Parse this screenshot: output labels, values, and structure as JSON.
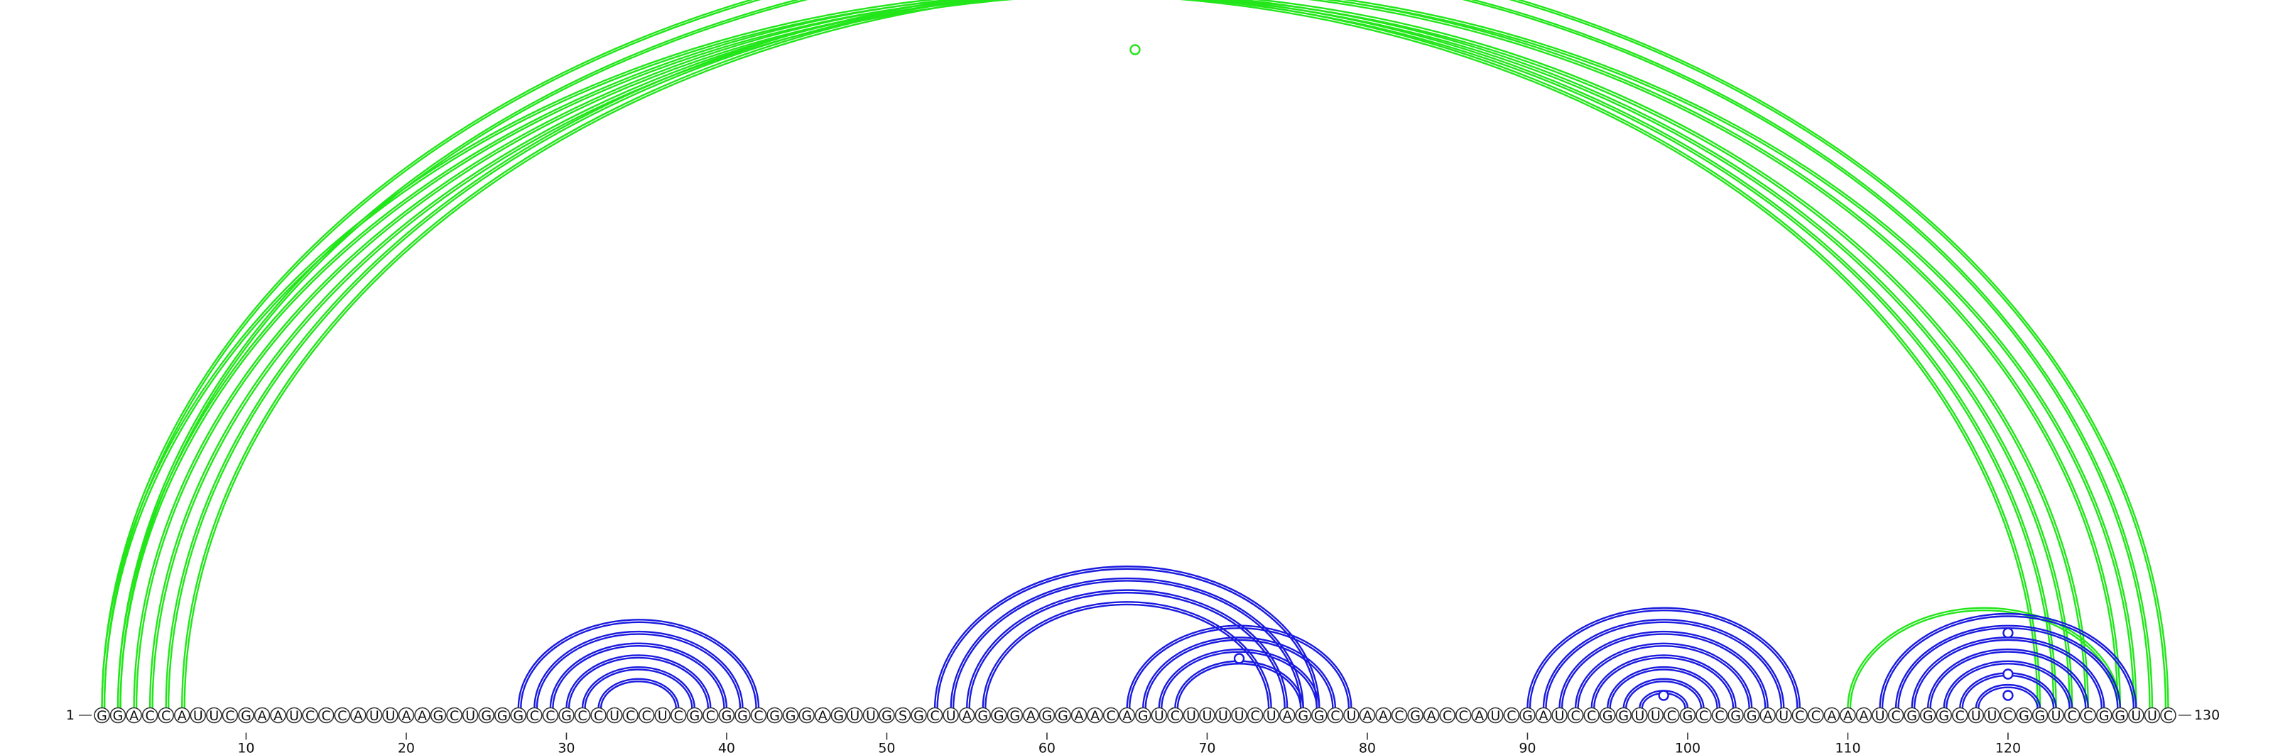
{
  "sequence": "GGACCAUUCGAAUCCCAUUAAGCUGGGCCGCCUCCUCGCGGCGGGAGUUGSGCUAGGGAGGAACAGUCUUUUCUAGGCUAACGACCAUCGAUCCGGUUCGCCGGAUCCAAAUCGGGCUUCGGUCCGGUUC",
  "start_label": "1",
  "end_label": "130",
  "ticks": [
    10,
    20,
    30,
    40,
    50,
    60,
    70,
    80,
    90,
    100,
    110,
    120
  ],
  "colors": {
    "green": "#22e61a",
    "blue": "#1a1ae0"
  },
  "pairs": {
    "green": [
      [
        1,
        122
      ],
      [
        2,
        123
      ],
      [
        3,
        124
      ],
      [
        4,
        125
      ],
      [
        5,
        127
      ],
      [
        6,
        128
      ],
      [
        2,
        129
      ],
      [
        1,
        130
      ],
      [
        110,
        127
      ]
    ],
    "blue": [
      [
        27,
        42
      ],
      [
        28,
        41
      ],
      [
        29,
        40
      ],
      [
        30,
        39
      ],
      [
        31,
        38
      ],
      [
        32,
        37
      ],
      [
        53,
        77
      ],
      [
        54,
        76
      ],
      [
        55,
        75
      ],
      [
        56,
        74
      ],
      [
        65,
        79
      ],
      [
        66,
        78
      ],
      [
        67,
        77
      ],
      [
        68,
        76
      ],
      [
        90,
        107
      ],
      [
        91,
        106
      ],
      [
        92,
        105
      ],
      [
        93,
        104
      ],
      [
        94,
        103
      ],
      [
        95,
        102
      ],
      [
        96,
        101
      ],
      [
        97,
        100
      ],
      [
        112,
        128
      ],
      [
        113,
        127
      ],
      [
        114,
        126
      ],
      [
        115,
        125
      ],
      [
        116,
        124
      ],
      [
        117,
        123
      ],
      [
        118,
        122
      ]
    ]
  },
  "markers": [
    {
      "position": 65.5,
      "color": "green"
    },
    {
      "position": 72,
      "color": "blue"
    },
    {
      "position": 98.5,
      "color": "blue"
    },
    {
      "position": 120,
      "color": "blue"
    },
    {
      "position": 120,
      "color": "blue"
    },
    {
      "position": 120,
      "color": "blue"
    }
  ]
}
